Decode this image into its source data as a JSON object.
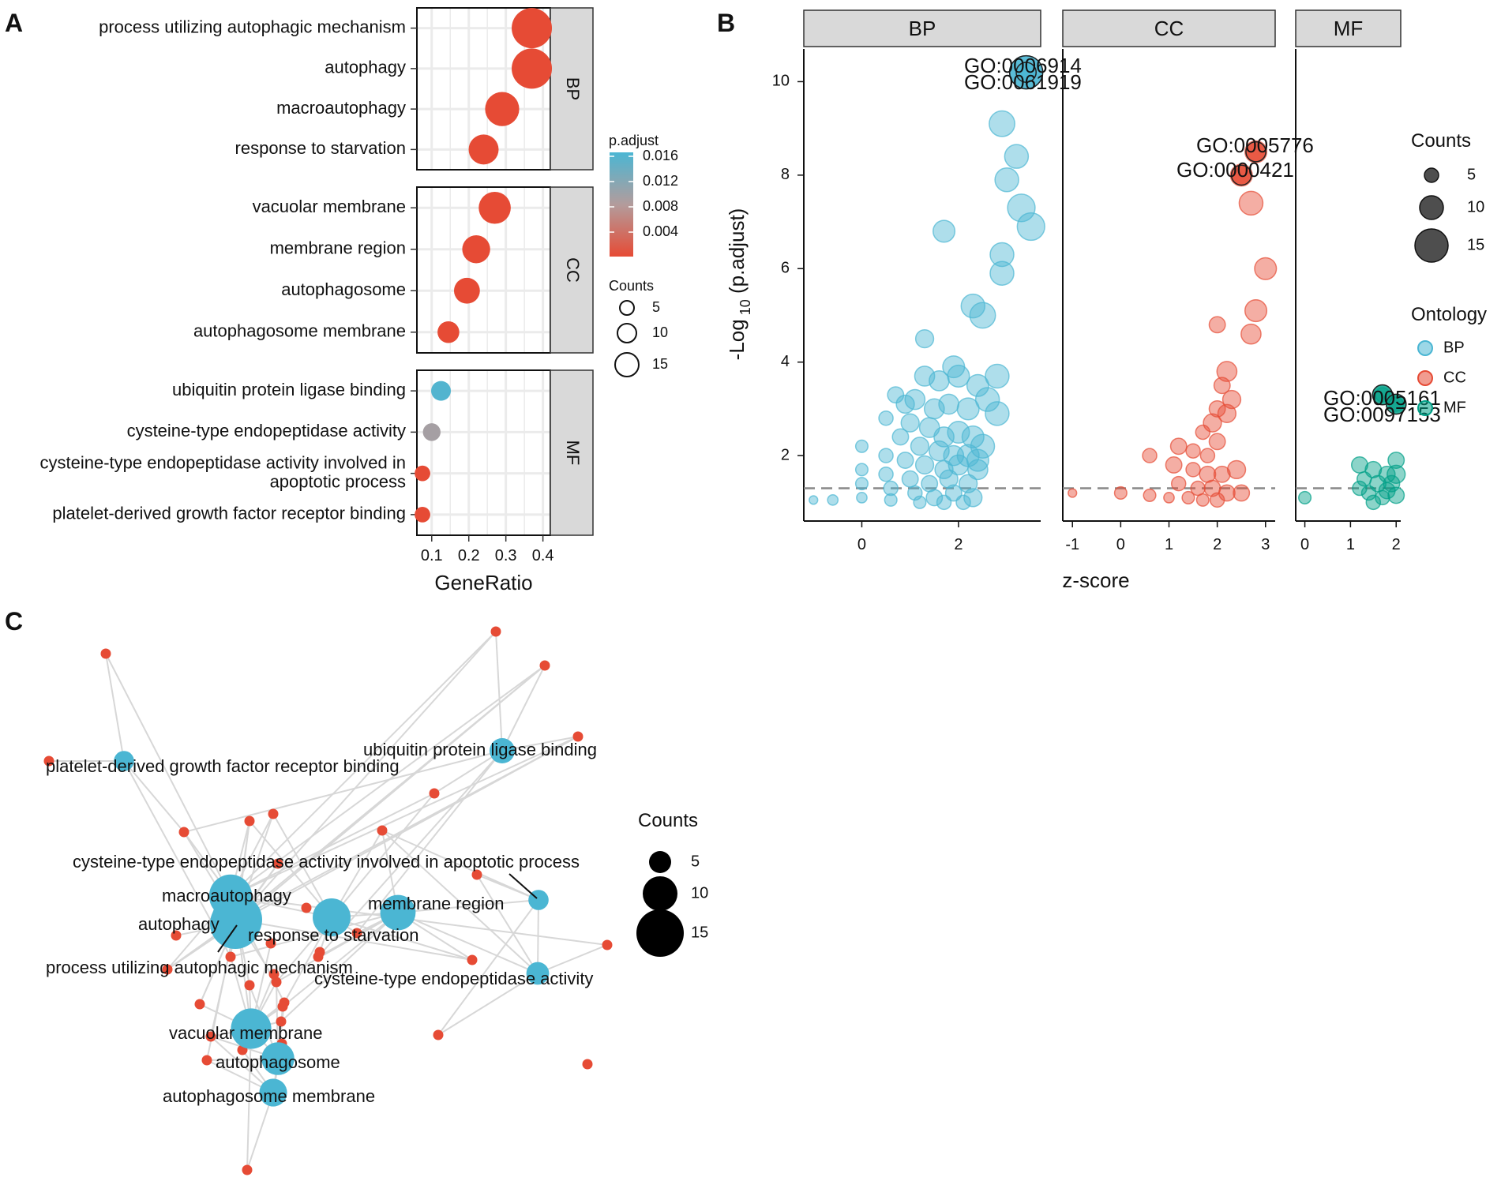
{
  "panel_letters": [
    "A",
    "B",
    "C"
  ],
  "colors": {
    "bp": "#4bb6d3",
    "cc": "#e64b35",
    "mf": "#00a087",
    "strip_fill": "#d9d9d9",
    "grid": "#ebebeb",
    "edge": "#d7d7d7",
    "node_gene": "#e64b35",
    "node_term": "#4bb6d3",
    "mid_adjust": "#b39c9c"
  },
  "chart_data": [
    {
      "id": "A",
      "type": "scatter",
      "xlabel": "GeneRatio",
      "xlim": [
        0.06,
        0.42
      ],
      "xticks": [
        0.1,
        0.2,
        0.3,
        0.4
      ],
      "xtick_labels": [
        "0.1",
        "0.2",
        "0.3",
        "0.4"
      ],
      "facets": [
        {
          "label": "BP",
          "terms": [
            {
              "term": "process utilizing autophagic mechanism",
              "ratio": 0.37,
              "count": 15,
              "p_adjust": 0.0
            },
            {
              "term": "autophagy",
              "ratio": 0.37,
              "count": 15,
              "p_adjust": 0.0
            },
            {
              "term": "macroautophagy",
              "ratio": 0.29,
              "count": 12,
              "p_adjust": 0.0
            },
            {
              "term": "response to starvation",
              "ratio": 0.24,
              "count": 10,
              "p_adjust": 0.0
            }
          ]
        },
        {
          "label": "CC",
          "terms": [
            {
              "term": "vacuolar membrane",
              "ratio": 0.27,
              "count": 11,
              "p_adjust": 0.0
            },
            {
              "term": "membrane region",
              "ratio": 0.22,
              "count": 9,
              "p_adjust": 0.0
            },
            {
              "term": "autophagosome",
              "ratio": 0.195,
              "count": 8,
              "p_adjust": 0.0
            },
            {
              "term": "autophagosome membrane",
              "ratio": 0.145,
              "count": 6,
              "p_adjust": 0.0
            }
          ]
        },
        {
          "label": "MF",
          "terms": [
            {
              "term": "ubiquitin protein ligase binding",
              "ratio": 0.125,
              "count": 5,
              "p_adjust": 0.016
            },
            {
              "term": "cysteine-type endopeptidase activity",
              "ratio": 0.1,
              "count": 4,
              "p_adjust": 0.01
            },
            {
              "term_lines": [
                "cysteine-type endopeptidase activity involved in",
                "apoptotic process"
              ],
              "ratio": 0.075,
              "count": 3,
              "p_adjust": 0.001
            },
            {
              "term": "platelet-derived growth factor receptor binding",
              "ratio": 0.075,
              "count": 3,
              "p_adjust": 0.001
            }
          ]
        }
      ],
      "legend_color": {
        "title": "p.adjust",
        "ticks": [
          "0.016",
          "0.012",
          "0.008",
          "0.004"
        ],
        "range": [
          0.0015,
          0.0165
        ]
      },
      "legend_size": {
        "title": "Counts",
        "values": [
          5,
          10,
          15
        ],
        "labels": [
          "5",
          "10",
          "15"
        ]
      }
    },
    {
      "id": "B",
      "type": "scatter",
      "xlabel": "z-score",
      "ylabel_main": "-Log",
      "ylabel_sub": "10",
      "ylabel_rest": " (p.adjust)",
      "ylim": [
        0.6,
        10.7
      ],
      "yticks": [
        2,
        4,
        6,
        8,
        10
      ],
      "ytick_labels": [
        "2",
        "4",
        "6",
        "8",
        "10"
      ],
      "threshold": 1.3,
      "facets": [
        {
          "label": "BP",
          "ontology": "BP",
          "xlim": [
            -1.2,
            3.7
          ],
          "xticks": [
            0,
            2
          ],
          "xtick_labels": [
            "0",
            "2"
          ],
          "points": [
            [
              3.4,
              10.2,
              15
            ],
            [
              2.9,
              9.1,
              11
            ],
            [
              3.2,
              8.4,
              10
            ],
            [
              3.0,
              7.9,
              10
            ],
            [
              3.3,
              7.3,
              12
            ],
            [
              3.5,
              6.9,
              12
            ],
            [
              1.7,
              6.8,
              9
            ],
            [
              2.9,
              6.3,
              10
            ],
            [
              2.9,
              5.9,
              10
            ],
            [
              2.3,
              5.2,
              10
            ],
            [
              2.5,
              5.0,
              11
            ],
            [
              1.3,
              4.5,
              7
            ],
            [
              1.9,
              3.9,
              9
            ],
            [
              1.3,
              3.7,
              8
            ],
            [
              1.6,
              3.6,
              8
            ],
            [
              2.0,
              3.7,
              9
            ],
            [
              2.4,
              3.5,
              9
            ],
            [
              2.8,
              3.7,
              10
            ],
            [
              0.5,
              2.8,
              5
            ],
            [
              0.7,
              3.3,
              6
            ],
            [
              0.9,
              3.1,
              7
            ],
            [
              1.1,
              3.2,
              8
            ],
            [
              1.5,
              3.0,
              8
            ],
            [
              1.8,
              3.1,
              8
            ],
            [
              2.2,
              3.0,
              9
            ],
            [
              2.6,
              3.2,
              10
            ],
            [
              2.8,
              2.9,
              10
            ],
            [
              1.0,
              2.7,
              7
            ],
            [
              1.4,
              2.6,
              8
            ],
            [
              1.7,
              2.4,
              8
            ],
            [
              2.0,
              2.5,
              9
            ],
            [
              2.3,
              2.4,
              9
            ],
            [
              2.5,
              2.2,
              10
            ],
            [
              0.8,
              2.4,
              6
            ],
            [
              1.2,
              2.2,
              7
            ],
            [
              1.6,
              2.1,
              8
            ],
            [
              1.9,
              2.0,
              8
            ],
            [
              2.2,
              2.0,
              9
            ],
            [
              2.4,
              1.9,
              9
            ],
            [
              0.0,
              2.2,
              4
            ],
            [
              0.5,
              2.0,
              5
            ],
            [
              0.9,
              1.9,
              6
            ],
            [
              1.3,
              1.8,
              7
            ],
            [
              1.7,
              1.7,
              7
            ],
            [
              2.0,
              1.8,
              8
            ],
            [
              2.4,
              1.7,
              8
            ],
            [
              0.0,
              1.7,
              4
            ],
            [
              0.5,
              1.6,
              5
            ],
            [
              1.0,
              1.5,
              6
            ],
            [
              1.4,
              1.4,
              6
            ],
            [
              1.8,
              1.5,
              7
            ],
            [
              2.2,
              1.4,
              7
            ],
            [
              0.0,
              1.4,
              4
            ],
            [
              0.6,
              1.3,
              5
            ],
            [
              1.1,
              1.2,
              5
            ],
            [
              1.5,
              1.1,
              6
            ],
            [
              1.9,
              1.2,
              6
            ],
            [
              2.3,
              1.1,
              7
            ],
            [
              0.0,
              1.1,
              3
            ],
            [
              0.6,
              1.05,
              4
            ],
            [
              1.2,
              1.0,
              4
            ],
            [
              1.7,
              1.0,
              5
            ],
            [
              2.1,
              1.0,
              5
            ],
            [
              -1.0,
              1.05,
              2
            ],
            [
              -0.6,
              1.05,
              3
            ]
          ],
          "labels": [
            {
              "text": "GO:0006914",
              "x": 3.4,
              "y": 10.2
            },
            {
              "text": "GO:0061919",
              "x": 3.4,
              "y": 10.2
            }
          ]
        },
        {
          "label": "CC",
          "ontology": "CC",
          "xlim": [
            -1.2,
            3.2
          ],
          "xticks": [
            -1,
            0,
            1,
            2,
            3
          ],
          "xtick_labels": [
            "-1",
            "0",
            "1",
            "2",
            "3"
          ],
          "points": [
            [
              2.8,
              8.5,
              9
            ],
            [
              2.5,
              8.0,
              9
            ],
            [
              2.7,
              7.4,
              10
            ],
            [
              3.0,
              6.0,
              9
            ],
            [
              2.8,
              5.1,
              9
            ],
            [
              2.7,
              4.6,
              8
            ],
            [
              2.0,
              4.8,
              6
            ],
            [
              2.2,
              3.8,
              8
            ],
            [
              2.1,
              3.5,
              6
            ],
            [
              2.3,
              3.2,
              7
            ],
            [
              2.0,
              3.0,
              6
            ],
            [
              2.2,
              2.9,
              7
            ],
            [
              1.9,
              2.7,
              7
            ],
            [
              1.7,
              2.5,
              5
            ],
            [
              2.0,
              2.3,
              6
            ],
            [
              1.2,
              2.2,
              6
            ],
            [
              1.5,
              2.1,
              5
            ],
            [
              1.8,
              2.0,
              5
            ],
            [
              0.6,
              2.0,
              5
            ],
            [
              1.1,
              1.8,
              6
            ],
            [
              1.5,
              1.7,
              5
            ],
            [
              1.8,
              1.6,
              6
            ],
            [
              2.1,
              1.6,
              6
            ],
            [
              2.4,
              1.7,
              7
            ],
            [
              1.2,
              1.4,
              5
            ],
            [
              1.6,
              1.3,
              5
            ],
            [
              1.9,
              1.3,
              6
            ],
            [
              2.2,
              1.2,
              6
            ],
            [
              2.5,
              1.2,
              6
            ],
            [
              0.0,
              1.2,
              4
            ],
            [
              0.6,
              1.15,
              4
            ],
            [
              1.0,
              1.1,
              3
            ],
            [
              1.4,
              1.1,
              4
            ],
            [
              1.7,
              1.05,
              4
            ],
            [
              2.0,
              1.05,
              5
            ],
            [
              -1.0,
              1.2,
              2
            ]
          ],
          "labels": [
            {
              "text": "GO:0005776",
              "x": 2.8,
              "y": 8.5
            },
            {
              "text": "GO:0000421",
              "x": 2.5,
              "y": 8.0
            }
          ]
        },
        {
          "label": "MF",
          "ontology": "MF",
          "xlim": [
            -0.2,
            2.1
          ],
          "xticks": [
            0,
            1,
            2
          ],
          "xtick_labels": [
            "0",
            "1",
            "2"
          ],
          "points": [
            [
              1.7,
              3.3,
              5
            ],
            [
              2.0,
              3.1,
              5
            ],
            [
              1.2,
              1.8,
              6
            ],
            [
              1.5,
              1.7,
              6
            ],
            [
              1.8,
              1.6,
              6
            ],
            [
              2.0,
              1.6,
              7
            ],
            [
              1.3,
              1.5,
              5
            ],
            [
              1.6,
              1.4,
              6
            ],
            [
              1.9,
              1.4,
              6
            ],
            [
              2.0,
              1.9,
              6
            ],
            [
              1.4,
              1.2,
              5
            ],
            [
              1.7,
              1.1,
              5
            ],
            [
              2.0,
              1.15,
              6
            ],
            [
              1.2,
              1.3,
              5
            ],
            [
              0.0,
              1.1,
              4
            ],
            [
              1.8,
              1.25,
              6
            ],
            [
              1.5,
              1.0,
              5
            ]
          ],
          "labels": [
            {
              "text": "GO:0005161",
              "x": 1.7,
              "y": 3.3
            },
            {
              "text": "GO:0097153",
              "x": 2.0,
              "y": 3.1
            }
          ]
        }
      ],
      "legend_size": {
        "title": "Counts",
        "values": [
          5,
          10,
          15
        ],
        "labels": [
          "5",
          "10",
          "15"
        ]
      },
      "legend_ontology": {
        "title": "Ontology",
        "items": [
          "BP",
          "CC",
          "MF"
        ]
      }
    },
    {
      "id": "C",
      "type": "network",
      "term_nodes": [
        {
          "label": "macroautophagy",
          "count": 12
        },
        {
          "label": "autophagy",
          "count": 15
        },
        {
          "label": "process utilizing autophagic mechanism",
          "count": 15
        },
        {
          "label": "response to starvation",
          "count": 10
        },
        {
          "label": "membrane region",
          "count": 9
        },
        {
          "label": "cysteine-type endopeptidase activity involved in apoptotic process",
          "count": 3
        },
        {
          "label": "cysteine-type endopeptidase activity",
          "count": 4
        },
        {
          "label": "ubiquitin protein ligase binding",
          "count": 5
        },
        {
          "label": "platelet-derived growth factor receptor binding",
          "count": 3
        },
        {
          "label": "vacuolar membrane",
          "count": 11
        },
        {
          "label": "autophagosome",
          "count": 8
        },
        {
          "label": "autophagosome membrane",
          "count": 6
        }
      ],
      "legend_size": {
        "title": "Counts",
        "values": [
          5,
          10,
          15
        ],
        "labels": [
          "5",
          "10",
          "15"
        ]
      }
    }
  ]
}
